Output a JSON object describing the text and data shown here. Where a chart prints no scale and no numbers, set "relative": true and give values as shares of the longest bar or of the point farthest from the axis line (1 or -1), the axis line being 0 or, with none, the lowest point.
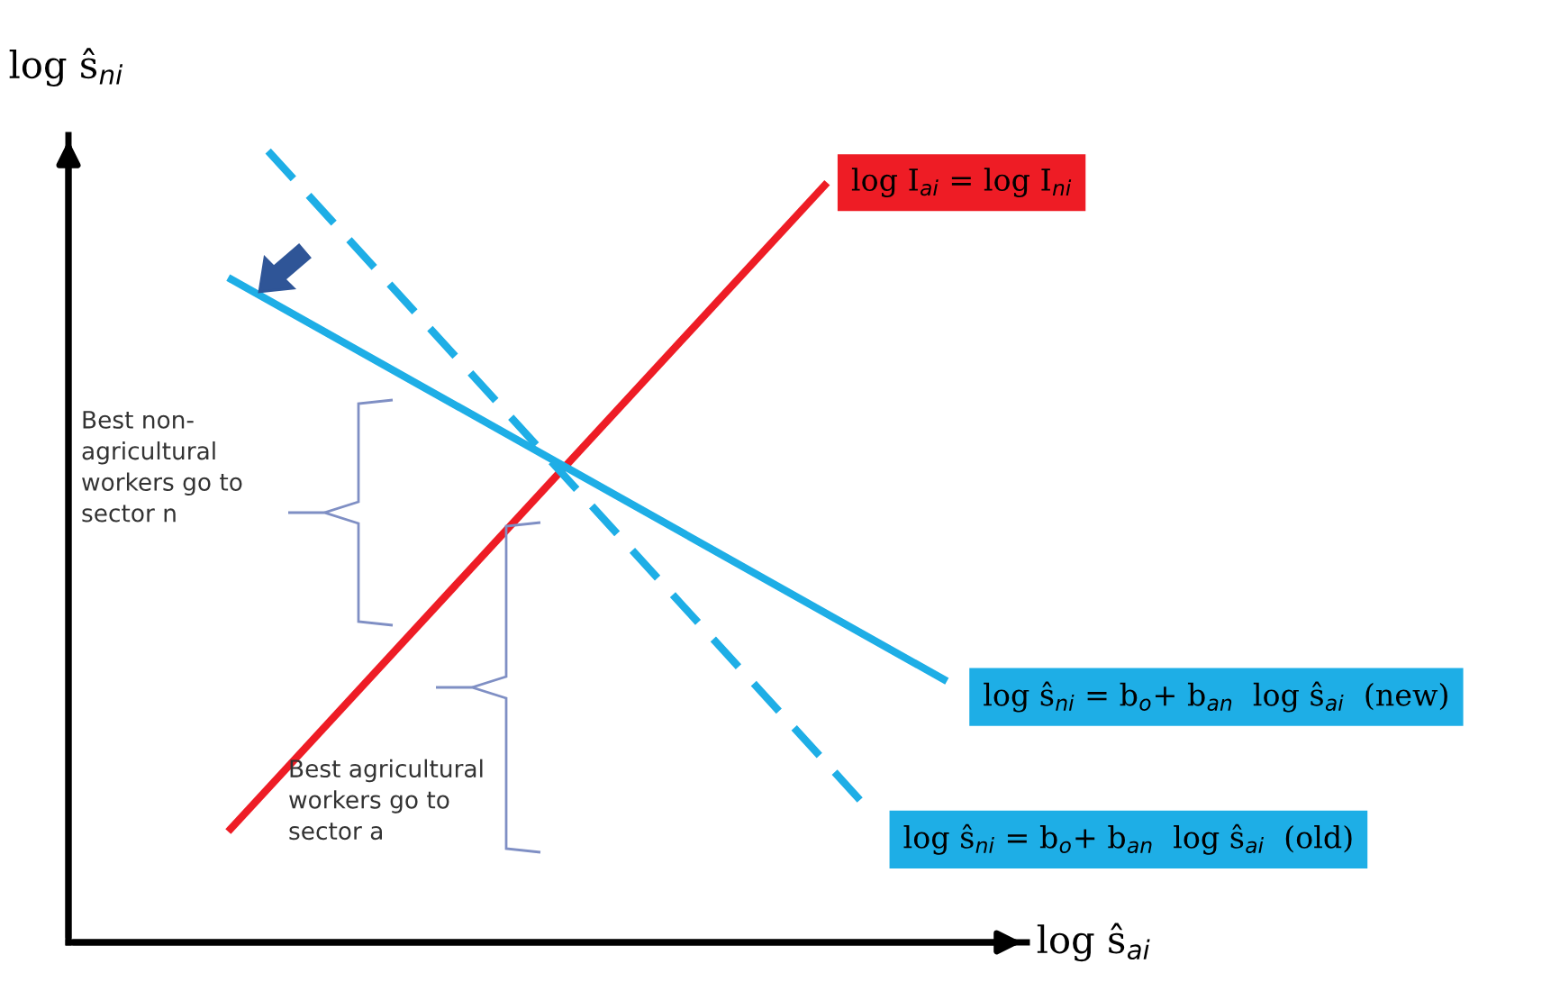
{
  "chart_data": {
    "type": "line",
    "relative": true,
    "legend": false,
    "marker": "none",
    "xlabel": "log ŝ$_{ai}$",
    "ylabel": "log ŝ$_{ni}$",
    "categories": [
      null,
      null,
      null,
      null,
      null,
      null,
      null,
      null,
      null,
      null,
      null,
      null,
      null,
      null,
      null,
      null,
      null,
      null,
      null,
      null,
      null,
      null,
      null,
      null
    ],
    "series": [
      {
        "name": "log I$_{ai}$ = log I$_{ni}$",
        "color": "#ee1c25",
        "values": [
          null,
          null,
          null,
          null,
          0.14,
          null,
          null,
          null,
          null,
          null,
          null,
          null,
          null,
          null,
          null,
          null,
          null,
          null,
          null,
          0.96,
          null,
          null,
          null,
          null
        ],
        "line_style": "solid"
      },
      {
        "name": "log ŝ$_{ni}$ = b$_{o}$+ b$_{an}$  log ŝ$_{ai}$  (new)",
        "color": "#1eaee6",
        "values": [
          null,
          null,
          null,
          null,
          0.84,
          null,
          null,
          null,
          null,
          null,
          null,
          null,
          null,
          null,
          null,
          null,
          null,
          null,
          null,
          null,
          null,
          null,
          0.33,
          null
        ],
        "line_style": "solid"
      },
      {
        "name": "log ŝ$_{ni}$ = b$_{o}$+ b$_{an}$  log ŝ$_{ai}$  (old)",
        "color": "#1eaee6",
        "values": [
          null,
          null,
          null,
          null,
          null,
          1.0,
          null,
          null,
          null,
          null,
          null,
          null,
          null,
          null,
          null,
          null,
          null,
          null,
          null,
          null,
          0.17,
          null,
          null,
          null
        ],
        "line_style": "dashed"
      }
    ],
    "annotations": [
      "Best non-\nagricultural\nworkers go to\nsector n",
      "Best agricultural\nworkers go to\nsector a"
    ]
  }
}
